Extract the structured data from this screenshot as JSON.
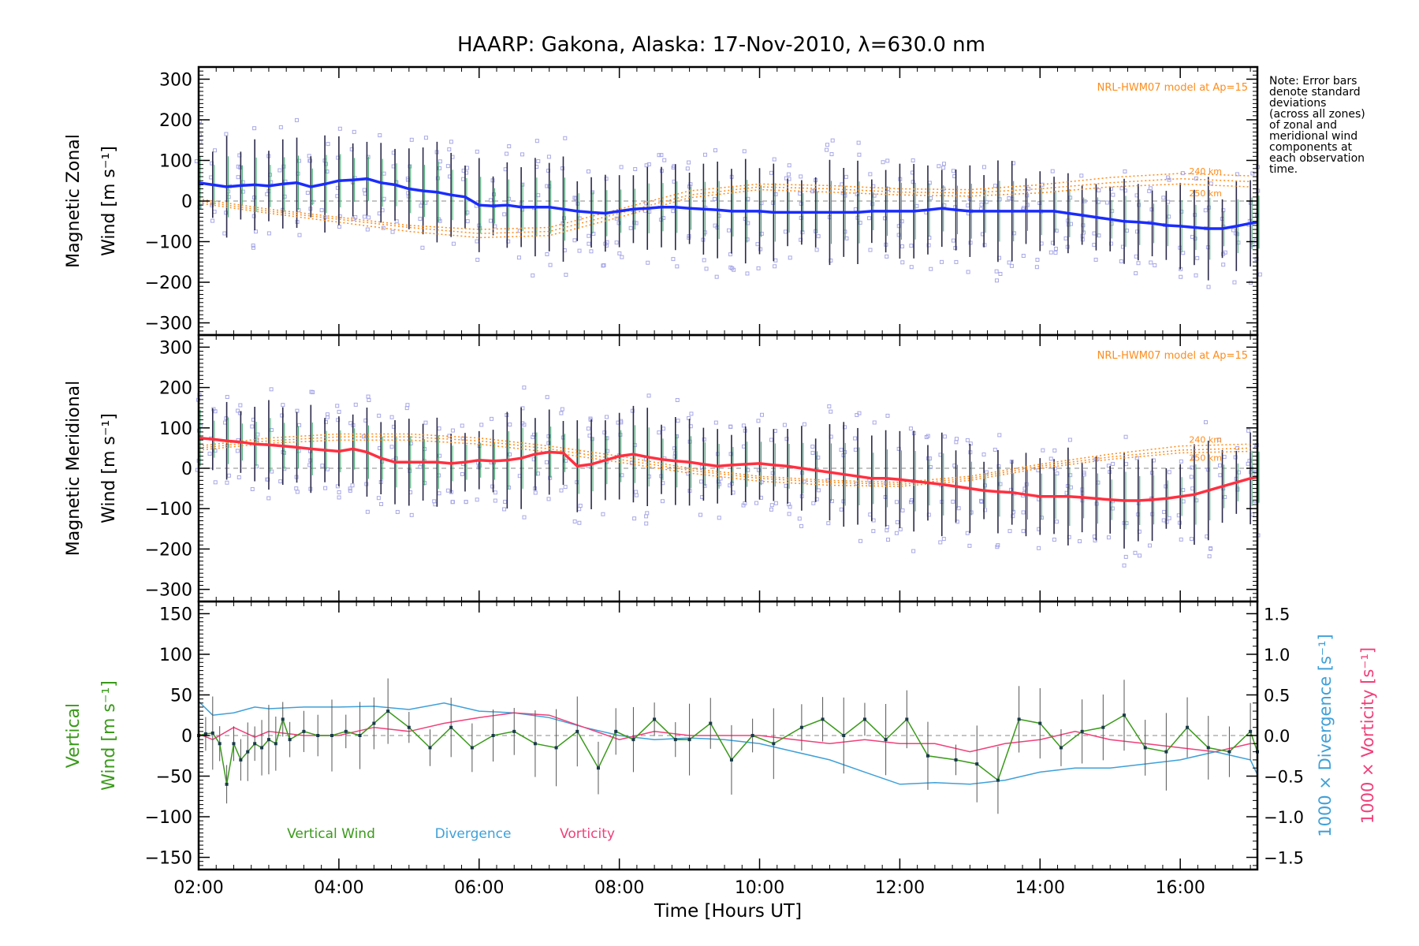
{
  "title": "HAARP: Gakona,  Alaska: 17-Nov-2010, λ=630.0 nm",
  "note": [
    "Note: Error bars",
    "denote standard",
    "deviations",
    "(across all zones)",
    "of zonal and",
    "meridional wind",
    "components at",
    "each observation",
    "time."
  ],
  "colors": {
    "zonal": "#1a2cff",
    "meridional": "#ff3040",
    "model": "#ff8c1a",
    "vertical": "#3a9a1a",
    "divergence": "#3fa0d8",
    "vorticity": "#f0407a",
    "scatter": "#a8a8e8",
    "errorbar": "#2a2a4a"
  },
  "chart_data": [
    {
      "type": "line",
      "panel": "zonal",
      "ylabel_line1": "Magnetic Zonal",
      "ylabel_line2": "Wind [m s⁻¹]",
      "ylim": [
        -330,
        330
      ],
      "yticks": [
        300,
        200,
        100,
        0,
        -100,
        -200,
        -300
      ],
      "xlim": [
        2.0,
        17.1
      ],
      "model_label": "NRL-HWM07 model at Ap=15",
      "model_alt_labels": [
        "240 km",
        "250 km"
      ],
      "series": [
        {
          "x": [
            2.0,
            2.2,
            2.4,
            2.6,
            2.8,
            3.0,
            3.2,
            3.4,
            3.6,
            3.8,
            4.0,
            4.2,
            4.4,
            4.6,
            4.8,
            5.0,
            5.2,
            5.4,
            5.6,
            5.8,
            6.0,
            6.2,
            6.4,
            6.6,
            6.8,
            7.0,
            7.2,
            7.4,
            7.6,
            7.8,
            8.0,
            8.2,
            8.4,
            8.6,
            8.8,
            9.0,
            9.2,
            9.4,
            9.6,
            9.8,
            10.0,
            10.2,
            10.4,
            10.6,
            10.8,
            11.0,
            11.2,
            11.4,
            11.6,
            11.8,
            12.0,
            12.2,
            12.4,
            12.6,
            12.8,
            13.0,
            13.2,
            13.4,
            13.6,
            13.8,
            14.0,
            14.2,
            14.4,
            14.6,
            14.8,
            15.0,
            15.2,
            15.4,
            15.6,
            15.8,
            16.0,
            16.2,
            16.4,
            16.6,
            16.8,
            17.0,
            17.1
          ],
          "y": [
            45,
            40,
            35,
            38,
            40,
            37,
            42,
            45,
            35,
            42,
            50,
            52,
            55,
            45,
            40,
            30,
            25,
            22,
            15,
            10,
            -10,
            -12,
            -10,
            -15,
            -15,
            -15,
            -20,
            -25,
            -28,
            -30,
            -25,
            -20,
            -18,
            -15,
            -15,
            -18,
            -20,
            -22,
            -25,
            -25,
            -25,
            -28,
            -28,
            -28,
            -28,
            -28,
            -28,
            -28,
            -25,
            -25,
            -25,
            -25,
            -22,
            -18,
            -22,
            -25,
            -25,
            -25,
            -25,
            -25,
            -25,
            -25,
            -30,
            -35,
            -40,
            -45,
            -50,
            -52,
            -55,
            -60,
            -62,
            -65,
            -68,
            -68,
            -62,
            -55,
            -52
          ]
        }
      ],
      "model_curves": [
        {
          "x": [
            2,
            3,
            4,
            5,
            6,
            7,
            8,
            9,
            10,
            11,
            12,
            13,
            14,
            15,
            16,
            17
          ],
          "y": [
            5,
            -20,
            -40,
            -60,
            -70,
            -65,
            -20,
            25,
            42,
            38,
            30,
            28,
            40,
            58,
            68,
            62
          ]
        },
        {
          "x": [
            2,
            3,
            4,
            5,
            6,
            7,
            8,
            9,
            10,
            11,
            12,
            13,
            14,
            15,
            16,
            17
          ],
          "y": [
            0,
            -25,
            -45,
            -65,
            -80,
            -75,
            -30,
            15,
            35,
            30,
            22,
            20,
            30,
            45,
            55,
            48
          ]
        },
        {
          "x": [
            2,
            3,
            4,
            5,
            6,
            7,
            8,
            9,
            10,
            11,
            12,
            13,
            14,
            15,
            16,
            17
          ],
          "y": [
            -5,
            -30,
            -52,
            -75,
            -90,
            -85,
            -40,
            8,
            28,
            22,
            15,
            12,
            20,
            35,
            42,
            35
          ]
        }
      ]
    },
    {
      "type": "line",
      "panel": "meridional",
      "ylabel_line1": "Magnetic Meridional",
      "ylabel_line2": "Wind [m s⁻¹]",
      "ylim": [
        -330,
        330
      ],
      "yticks": [
        300,
        200,
        100,
        0,
        -100,
        -200,
        -300
      ],
      "xlim": [
        2.0,
        17.1
      ],
      "model_label": "NRL-HWM07 model at Ap=15",
      "model_alt_labels": [
        "240 km",
        "250 km"
      ],
      "series": [
        {
          "x": [
            2.0,
            2.2,
            2.4,
            2.6,
            2.8,
            3.0,
            3.2,
            3.4,
            3.6,
            3.8,
            4.0,
            4.2,
            4.4,
            4.6,
            4.8,
            5.0,
            5.2,
            5.4,
            5.6,
            5.8,
            6.0,
            6.2,
            6.4,
            6.6,
            6.8,
            7.0,
            7.2,
            7.4,
            7.6,
            7.8,
            8.0,
            8.2,
            8.4,
            8.6,
            8.8,
            9.0,
            9.2,
            9.4,
            9.6,
            9.8,
            10.0,
            10.2,
            10.4,
            10.6,
            10.8,
            11.0,
            11.2,
            11.4,
            11.6,
            11.8,
            12.0,
            12.2,
            12.4,
            12.6,
            12.8,
            13.0,
            13.2,
            13.4,
            13.6,
            13.8,
            14.0,
            14.2,
            14.4,
            14.6,
            14.8,
            15.0,
            15.2,
            15.4,
            15.6,
            15.8,
            16.0,
            16.2,
            16.4,
            16.6,
            16.8,
            17.0,
            17.1
          ],
          "y": [
            75,
            72,
            68,
            65,
            60,
            58,
            55,
            52,
            48,
            45,
            42,
            48,
            40,
            25,
            15,
            15,
            15,
            15,
            12,
            15,
            20,
            18,
            20,
            25,
            35,
            40,
            38,
            5,
            10,
            20,
            30,
            35,
            28,
            22,
            18,
            15,
            10,
            5,
            8,
            10,
            12,
            8,
            5,
            0,
            -5,
            -10,
            -15,
            -20,
            -25,
            -25,
            -28,
            -32,
            -36,
            -40,
            -45,
            -50,
            -55,
            -58,
            -60,
            -65,
            -70,
            -70,
            -70,
            -72,
            -75,
            -78,
            -80,
            -80,
            -78,
            -75,
            -70,
            -65,
            -55,
            -45,
            -35,
            -25,
            -22
          ]
        }
      ],
      "model_curves": [
        {
          "x": [
            2,
            3,
            4,
            5,
            6,
            7,
            8,
            9,
            10,
            11,
            12,
            13,
            14,
            15,
            16,
            17
          ],
          "y": [
            55,
            75,
            85,
            85,
            75,
            55,
            30,
            0,
            -20,
            -30,
            -35,
            -20,
            10,
            35,
            55,
            60
          ]
        },
        {
          "x": [
            2,
            3,
            4,
            5,
            6,
            7,
            8,
            9,
            10,
            11,
            12,
            13,
            14,
            15,
            16,
            17
          ],
          "y": [
            50,
            68,
            78,
            78,
            68,
            48,
            22,
            -5,
            -25,
            -35,
            -40,
            -25,
            5,
            28,
            45,
            50
          ]
        },
        {
          "x": [
            2,
            3,
            4,
            5,
            6,
            7,
            8,
            9,
            10,
            11,
            12,
            13,
            14,
            15,
            16,
            17
          ],
          "y": [
            45,
            62,
            70,
            70,
            60,
            40,
            15,
            -12,
            -32,
            -42,
            -45,
            -30,
            0,
            22,
            38,
            42
          ]
        }
      ]
    },
    {
      "type": "line",
      "panel": "vertical",
      "ylabel_line1": "Vertical",
      "ylabel_line2": "Wind [m s⁻¹]",
      "ylim": [
        -165,
        165
      ],
      "yticks": [
        150,
        100,
        50,
        0,
        -50,
        -100,
        -150
      ],
      "right_axis": {
        "ylim": [
          -1.65,
          1.65
        ],
        "yticks": [
          "1.5",
          "1.0",
          "0.5",
          "0.0",
          "−0.5",
          "−1.0",
          "−1.5"
        ],
        "label_divergence": "1000 × Divergence [s⁻¹]",
        "label_vorticity": "1000 × Vorticity [s⁻¹]"
      },
      "xlim": [
        2.0,
        17.1
      ],
      "xticks": [
        "02:00",
        "04:00",
        "06:00",
        "08:00",
        "10:00",
        "12:00",
        "14:00",
        "16:00"
      ],
      "xlabel": "Time [Hours UT]",
      "legend": [
        "Vertical Wind",
        "Divergence",
        "Vorticity"
      ],
      "series": [
        {
          "name": "Vertical Wind",
          "x": [
            2.0,
            2.1,
            2.2,
            2.3,
            2.4,
            2.5,
            2.6,
            2.7,
            2.8,
            2.9,
            3.0,
            3.1,
            3.2,
            3.3,
            3.5,
            3.7,
            3.9,
            4.1,
            4.3,
            4.5,
            4.7,
            5.0,
            5.3,
            5.6,
            5.9,
            6.2,
            6.5,
            6.8,
            7.1,
            7.4,
            7.7,
            7.95,
            8.2,
            8.5,
            8.8,
            9.0,
            9.3,
            9.6,
            9.9,
            10.2,
            10.6,
            10.9,
            11.2,
            11.5,
            11.8,
            12.1,
            12.4,
            12.8,
            13.1,
            13.4,
            13.7,
            14.0,
            14.3,
            14.6,
            14.9,
            15.2,
            15.5,
            15.8,
            16.1,
            16.4,
            16.7,
            17.0,
            17.1
          ],
          "y": [
            0,
            2,
            3,
            -10,
            -60,
            -10,
            -30,
            -20,
            -10,
            -15,
            -5,
            -10,
            20,
            -5,
            5,
            0,
            0,
            5,
            0,
            15,
            30,
            10,
            -15,
            10,
            -15,
            0,
            5,
            -10,
            -15,
            5,
            -40,
            5,
            -5,
            20,
            -5,
            -5,
            15,
            -30,
            0,
            -10,
            10,
            20,
            0,
            20,
            -5,
            20,
            -25,
            -30,
            -35,
            -55,
            20,
            15,
            -15,
            5,
            10,
            25,
            -15,
            -20,
            10,
            -15,
            -20,
            5,
            -20
          ]
        },
        {
          "name": "Divergence",
          "x": [
            2.0,
            2.2,
            2.5,
            2.8,
            3.0,
            3.5,
            4.0,
            4.5,
            5.0,
            5.5,
            6.0,
            6.5,
            7.0,
            7.5,
            8.0,
            8.5,
            9.0,
            9.5,
            10.0,
            10.5,
            11.0,
            11.5,
            12.0,
            12.5,
            13.0,
            13.5,
            14.0,
            14.5,
            15.0,
            15.5,
            16.0,
            16.5,
            17.0,
            17.1
          ],
          "y": [
            0.42,
            0.25,
            0.28,
            0.35,
            0.33,
            0.35,
            0.35,
            0.36,
            0.32,
            0.4,
            0.3,
            0.28,
            0.22,
            0.1,
            0.0,
            -0.05,
            -0.03,
            -0.05,
            -0.1,
            -0.2,
            -0.3,
            -0.45,
            -0.6,
            -0.58,
            -0.6,
            -0.55,
            -0.45,
            -0.4,
            -0.4,
            -0.35,
            -0.3,
            -0.2,
            -0.3,
            -0.48
          ]
        },
        {
          "name": "Vorticity",
          "x": [
            2.0,
            2.2,
            2.5,
            2.8,
            3.0,
            3.5,
            4.0,
            4.5,
            5.0,
            5.5,
            6.0,
            6.5,
            7.0,
            7.5,
            8.0,
            8.5,
            9.0,
            9.5,
            10.0,
            10.5,
            11.0,
            11.5,
            12.0,
            12.5,
            13.0,
            13.5,
            14.0,
            14.5,
            15.0,
            15.5,
            16.0,
            16.5,
            17.0,
            17.1
          ],
          "y": [
            0.02,
            -0.05,
            0.1,
            -0.02,
            0.05,
            0.0,
            0.0,
            0.1,
            0.05,
            0.15,
            0.22,
            0.28,
            0.25,
            0.1,
            -0.05,
            0.05,
            0.0,
            0.0,
            0.0,
            -0.05,
            -0.1,
            -0.05,
            -0.1,
            -0.1,
            -0.2,
            -0.1,
            -0.05,
            0.05,
            -0.05,
            -0.1,
            -0.15,
            -0.2,
            -0.1,
            -0.1
          ]
        }
      ]
    }
  ]
}
